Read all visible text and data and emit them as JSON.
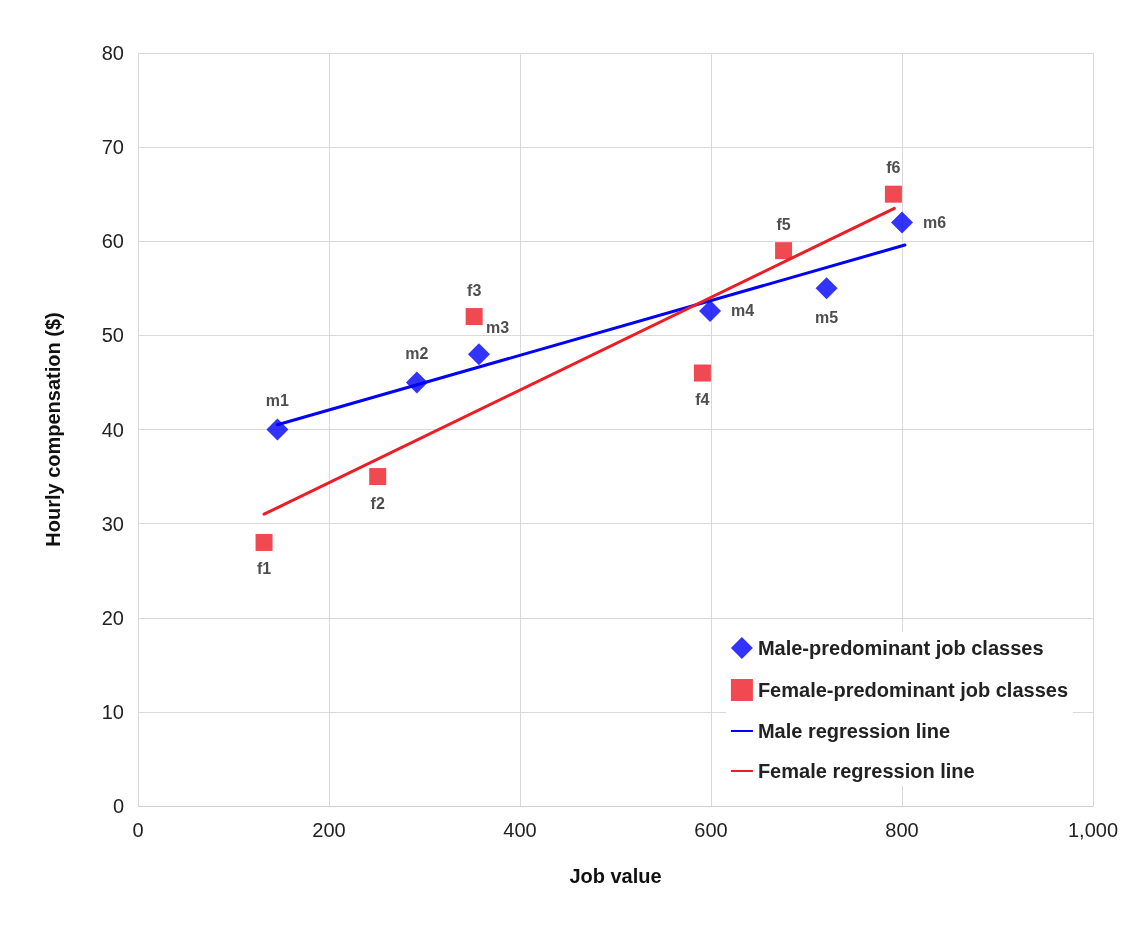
{
  "chart_data": {
    "type": "scatter",
    "xlabel": "Job value",
    "ylabel": "Hourly compensation ($)",
    "xlim": [
      0,
      1000
    ],
    "xticks": [
      0,
      200,
      400,
      600,
      800,
      {
        "value": 1000,
        "label": "1,000"
      }
    ],
    "ylim": [
      0,
      80
    ],
    "yticks": [
      0,
      10,
      20,
      30,
      40,
      50,
      60,
      70,
      80
    ],
    "grid": true,
    "legend": "bottom right",
    "series": [
      {
        "name": "Male-predominant job classes",
        "type": "scatter",
        "marker": "diamond",
        "color": "#0000ff",
        "x": [
          146,
          292,
          357,
          599,
          721,
          800
        ],
        "values": [
          40,
          45,
          48,
          52.6,
          55,
          62
        ],
        "value_labels": [
          "m1",
          "m2",
          "m3",
          "m4",
          "m5",
          "m6"
        ]
      },
      {
        "name": "Female-predominant job classes",
        "type": "scatter",
        "marker": "square",
        "color": "#ee1c25",
        "x": [
          132,
          251,
          352,
          591,
          676,
          791
        ],
        "values": [
          28,
          35,
          52,
          46,
          59,
          65
        ],
        "value_labels": [
          "f1",
          "f2",
          "f3",
          "f4",
          "f5",
          "f6"
        ]
      },
      {
        "name": "Male regression line",
        "type": "line",
        "marker": "none",
        "color": "#0000ff",
        "x": [
          146,
          803
        ],
        "values": [
          40.5,
          59.6
        ]
      },
      {
        "name": "Female regression line",
        "type": "line",
        "marker": "none",
        "color": "#ee1c25",
        "x": [
          132,
          792
        ],
        "values": [
          31,
          63.5
        ]
      }
    ]
  }
}
